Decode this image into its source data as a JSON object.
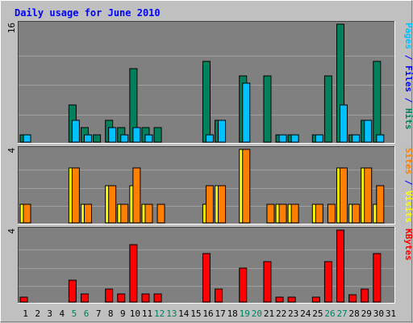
{
  "chart_data": {
    "type": "bar",
    "title": "Daily usage for June 2010",
    "x": [
      1,
      2,
      3,
      4,
      5,
      6,
      7,
      8,
      9,
      10,
      11,
      12,
      13,
      14,
      15,
      16,
      17,
      18,
      19,
      20,
      21,
      22,
      23,
      24,
      25,
      26,
      27,
      28,
      29,
      30,
      31
    ],
    "weekend_days": [
      5,
      6,
      12,
      13,
      19,
      20,
      26,
      27
    ],
    "colors": {
      "hits": "#00805c",
      "files": "#00c0ff",
      "sites": "#ff8000",
      "visits": "#ffff00",
      "kbytes": "#ff0000",
      "weekday_label": "#000000",
      "weekend_label": "#00805c",
      "title": "#0000ff",
      "panel_bg": "#808080"
    },
    "panels": [
      {
        "id": "hits-panel",
        "scale_max_label": "16",
        "ymax": 16,
        "side_label_parts": [
          {
            "text": "Pages",
            "color": "#00c0ff"
          },
          {
            "text": " / ",
            "color": "#0000ff"
          },
          {
            "text": "Files",
            "color": "#0000ff"
          },
          {
            "text": " / ",
            "color": "#0000ff"
          },
          {
            "text": "Hits",
            "color": "#00805c"
          }
        ],
        "series": [
          {
            "name": "Hits",
            "color": "#00805c",
            "values": [
              1,
              0,
              0,
              0,
              5,
              2,
              1,
              3,
              2,
              10,
              2,
              2,
              0,
              0,
              0,
              11,
              3,
              0,
              9,
              0,
              9,
              1,
              1,
              0,
              1,
              9,
              16,
              1,
              3,
              11,
              0
            ]
          },
          {
            "name": "Files",
            "color": "#00c0ff",
            "values": [
              1,
              0,
              0,
              0,
              3,
              1,
              0,
              2,
              1,
              2,
              1,
              0,
              0,
              0,
              0,
              1,
              3,
              0,
              8,
              0,
              0,
              1,
              1,
              0,
              1,
              0,
              5,
              1,
              3,
              1,
              0
            ]
          }
        ]
      },
      {
        "id": "visits-panel",
        "scale_max_label": "4",
        "ymax": 4,
        "side_label_parts": [
          {
            "text": "Sites",
            "color": "#ff8000"
          },
          {
            "text": " / ",
            "color": "#0000ff"
          },
          {
            "text": "Visits",
            "color": "#ffff00"
          }
        ],
        "series": [
          {
            "name": "Visits",
            "color": "#ffff00",
            "values": [
              1,
              0,
              0,
              0,
              3,
              1,
              0,
              2,
              1,
              2,
              1,
              0,
              0,
              0,
              0,
              1,
              2,
              0,
              4,
              0,
              0,
              1,
              1,
              0,
              1,
              0,
              3,
              1,
              3,
              1,
              0
            ]
          },
          {
            "name": "Sites",
            "color": "#ff8000",
            "values": [
              1,
              0,
              0,
              0,
              3,
              1,
              0,
              2,
              1,
              3,
              1,
              1,
              0,
              0,
              0,
              2,
              2,
              0,
              4,
              0,
              1,
              1,
              1,
              0,
              1,
              1,
              3,
              1,
              3,
              2,
              0
            ]
          }
        ]
      },
      {
        "id": "kbytes-panel",
        "scale_max_label": "4",
        "ymax": 4,
        "side_label_parts": [
          {
            "text": "KBytes",
            "color": "#ff0000"
          }
        ],
        "series": [
          {
            "name": "KBytes",
            "color": "#ff0000",
            "values": [
              0.25,
              0,
              0,
              0,
              1.2,
              0.45,
              0,
              0.7,
              0.45,
              3.2,
              0.45,
              0.45,
              0,
              0,
              0,
              2.7,
              0.7,
              0,
              1.9,
              0,
              2.25,
              0.25,
              0.25,
              0,
              0.25,
              2.25,
              4,
              0.4,
              0.7,
              2.7,
              0
            ]
          }
        ]
      }
    ]
  }
}
